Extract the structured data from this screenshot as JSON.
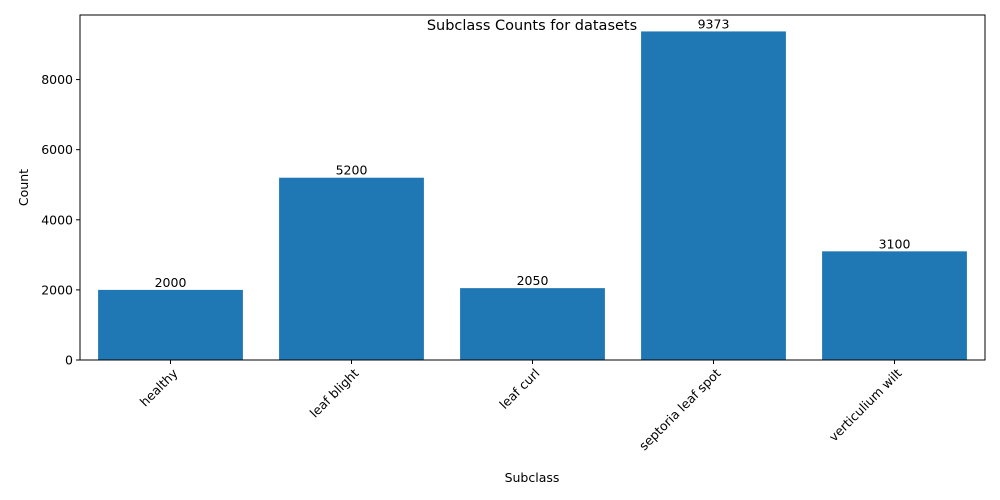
{
  "chart_data": {
    "type": "bar",
    "title": "Subclass Counts for datasets",
    "xlabel": "Subclass",
    "ylabel": "Count",
    "categories": [
      "healthy",
      "leaf blight",
      "leaf curl",
      "septoria leaf spot",
      "verticulium wilt"
    ],
    "values": [
      2000,
      5200,
      2050,
      9373,
      3100
    ],
    "data_labels": [
      "2000",
      "5200",
      "2050",
      "9373",
      "3100"
    ],
    "yticks": [
      0,
      2000,
      4000,
      6000,
      8000
    ],
    "ylim": [
      0,
      9842
    ],
    "grid": false,
    "legend": "none",
    "bar_color": "#1f77b4",
    "xtick_rotation_deg": 45
  }
}
